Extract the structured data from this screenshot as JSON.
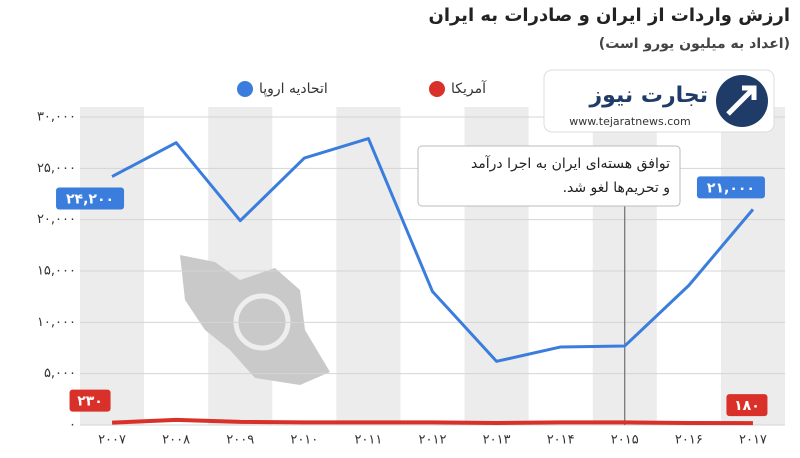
{
  "chart_data": {
    "type": "line",
    "title": "ارزش واردات از ایران و صادرات به ایران",
    "subtitle": "(اعداد به میلیون یورو است)",
    "categories": [
      "۲۰۰۷",
      "۲۰۰۸",
      "۲۰۰۹",
      "۲۰۱۰",
      "۲۰۱۱",
      "۲۰۱۲",
      "۲۰۱۳",
      "۲۰۱۴",
      "۲۰۱۵",
      "۲۰۱۶",
      "۲۰۱۷"
    ],
    "series": [
      {
        "name": "اتحادیه اروپا",
        "color": "#3b7ddd",
        "values": [
          24200,
          27500,
          19900,
          26000,
          27900,
          13000,
          6200,
          7600,
          7700,
          13600,
          21000
        ],
        "value_labels": [
          "۲۴,۲۰۰",
          null,
          null,
          null,
          null,
          null,
          null,
          null,
          null,
          null,
          "۲۱,۰۰۰"
        ]
      },
      {
        "name": "آمریکا",
        "color": "#d9302a",
        "values": [
          230,
          500,
          300,
          250,
          250,
          250,
          200,
          250,
          250,
          200,
          180
        ],
        "value_labels": [
          "۲۳۰",
          null,
          null,
          null,
          null,
          null,
          null,
          null,
          null,
          null,
          "۱۸۰"
        ]
      }
    ],
    "ylim": [
      0,
      30000
    ],
    "yticks": [
      {
        "value": 0,
        "label": "۰"
      },
      {
        "value": 5000,
        "label": "۵,۰۰۰"
      },
      {
        "value": 10000,
        "label": "۱۰,۰۰۰"
      },
      {
        "value": 15000,
        "label": "۱۵,۰۰۰"
      },
      {
        "value": 20000,
        "label": "۲۰,۰۰۰"
      },
      {
        "value": 25000,
        "label": "۲۵,۰۰۰"
      },
      {
        "value": 30000,
        "label": "۳۰,۰۰۰"
      }
    ],
    "grid": true,
    "annotation": {
      "category": "۲۰۱۵",
      "lines": [
        "توافق هسته‌ای ایران به اجرا درآمد",
        "و تحریم‌ها لغو شد."
      ]
    },
    "logo": {
      "name": "تجارت نیوز",
      "url": "www.tejaratnews.com"
    }
  }
}
